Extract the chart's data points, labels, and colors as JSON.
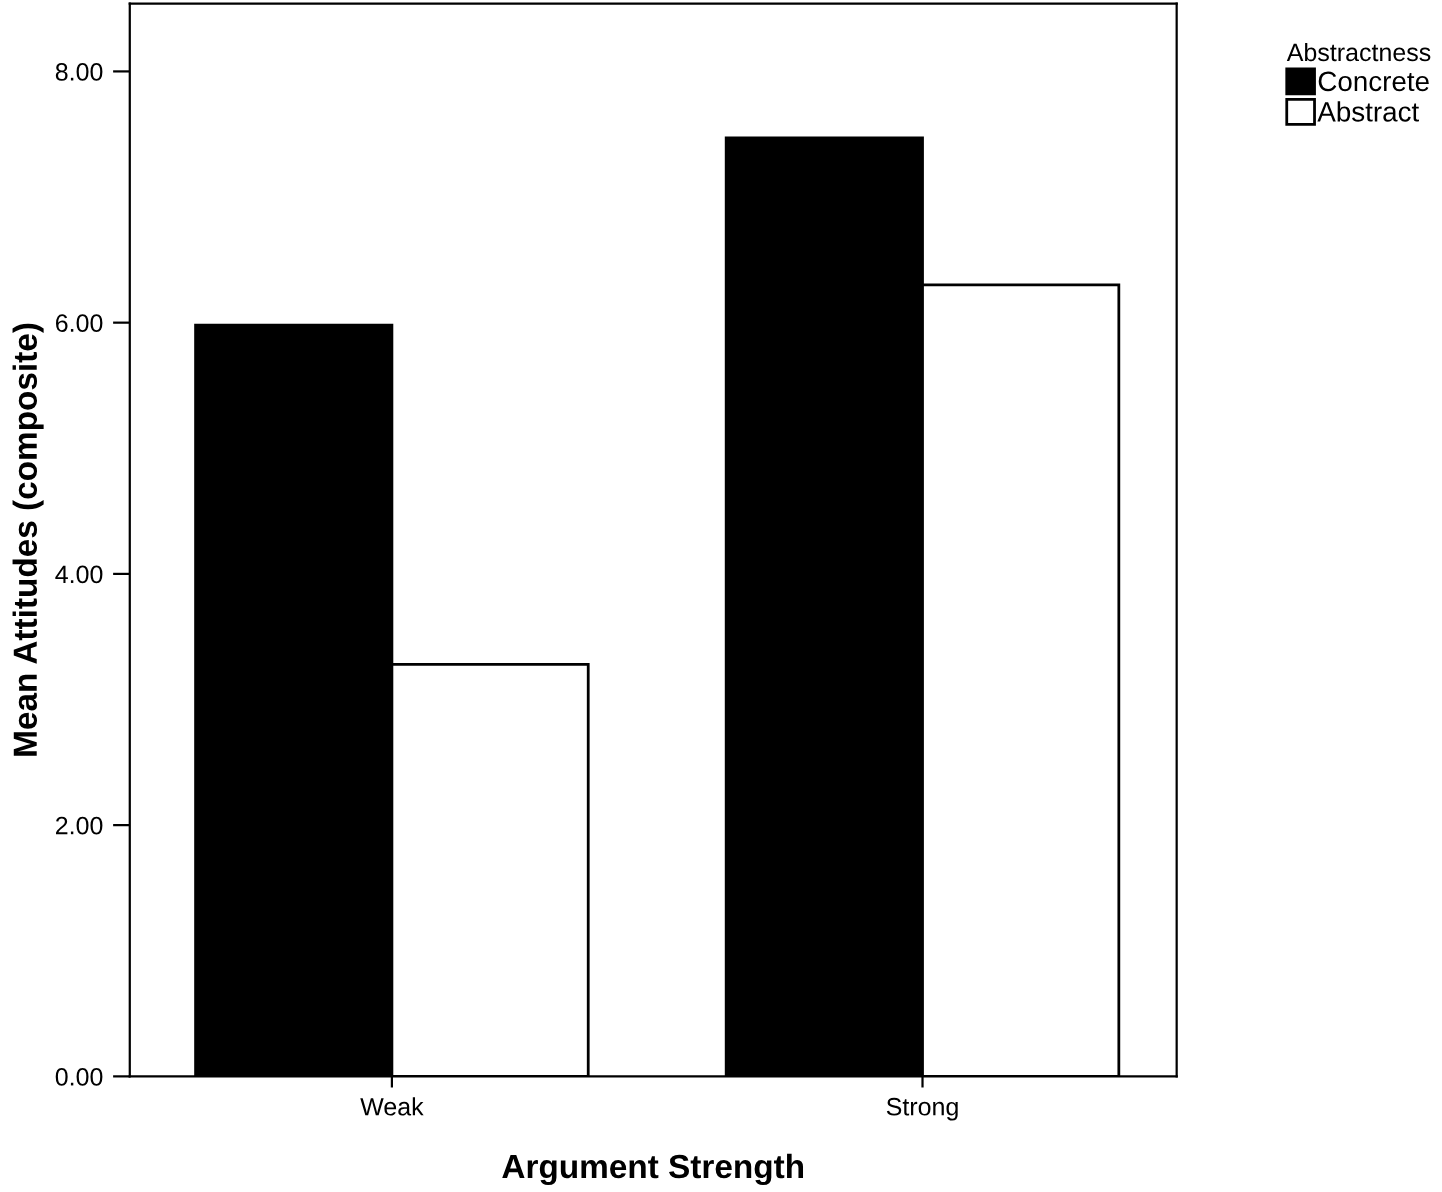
{
  "chart_data": {
    "type": "bar",
    "xlabel": "Argument Strength",
    "ylabel": "Mean Attitudes (composite)",
    "legend_title": "Abstractness",
    "categories": [
      "Weak",
      "Strong"
    ],
    "series": [
      {
        "name": "Concrete",
        "color": "#000000",
        "values": [
          5.98,
          7.47
        ]
      },
      {
        "name": "Abstract",
        "color": "#ffffff",
        "values": [
          3.28,
          6.3
        ]
      }
    ],
    "ylim": [
      0,
      8.54
    ],
    "yticks": [
      {
        "value": 0,
        "label": "0.00"
      },
      {
        "value": 2,
        "label": "2.00"
      },
      {
        "value": 4,
        "label": "4.00"
      },
      {
        "value": 6,
        "label": "6.00"
      },
      {
        "value": 8,
        "label": "8.00"
      }
    ],
    "grid": false,
    "legend": "top right"
  }
}
